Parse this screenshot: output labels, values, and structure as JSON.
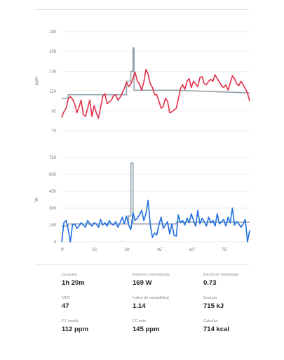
{
  "chart_data": [
    {
      "type": "line",
      "ylabel": "ppm",
      "yticks": [
        "70",
        "92",
        "114",
        "136",
        "158",
        "180"
      ],
      "ylim": [
        70,
        180
      ],
      "xlim": [
        0,
        87
      ],
      "grid": true,
      "colors": {
        "series": "#e0304a",
        "reference": "#93a3ad"
      },
      "series": [
        {
          "x": [
            0,
            1,
            2,
            3,
            4,
            5,
            6,
            7,
            8,
            9,
            10,
            11,
            12,
            13,
            14,
            15,
            16,
            17,
            18,
            19,
            20,
            21,
            22,
            23,
            24,
            25,
            26,
            27,
            28,
            29,
            30,
            31,
            32,
            33,
            34,
            35,
            36,
            37,
            38,
            39,
            40,
            41,
            42,
            43,
            44,
            45,
            46,
            47,
            48,
            49,
            50,
            51,
            52,
            53,
            54,
            55,
            56,
            57,
            58,
            59,
            60,
            61,
            62,
            63,
            64,
            65,
            66,
            67,
            68,
            69,
            70,
            71,
            72,
            73,
            74,
            75,
            76,
            77,
            78,
            79,
            80,
            81,
            82,
            83,
            84,
            85,
            86,
            87
          ],
          "values": [
            85,
            91,
            95,
            105,
            108,
            105,
            100,
            90,
            96,
            104,
            88,
            86,
            95,
            104,
            86,
            98,
            90,
            84,
            96,
            108,
            111,
            100,
            102,
            104,
            109,
            110,
            104,
            107,
            112,
            117,
            124,
            119,
            122,
            128,
            135,
            125,
            122,
            115,
            124,
            138,
            133,
            122,
            118,
            110,
            110,
            103,
            95,
            97,
            106,
            103,
            90,
            91,
            93,
            95,
            105,
            117,
            121,
            116,
            125,
            128,
            118,
            125,
            122,
            119,
            129,
            130,
            122,
            121,
            125,
            127,
            125,
            132,
            128,
            124,
            120,
            118,
            121,
            115,
            123,
            131,
            128,
            122,
            120,
            125,
            121,
            117,
            112,
            103
          ]
        },
        {
          "x": [
            0,
            3,
            3,
            28,
            28,
            30,
            30,
            32,
            32,
            33,
            33,
            33.5,
            33.5,
            53,
            53,
            87
          ],
          "values": [
            106,
            106,
            110,
            110,
            110,
            110,
            125,
            125,
            136,
            136,
            162,
            162,
            115,
            115,
            115,
            112
          ]
        }
      ]
    },
    {
      "type": "line",
      "ylabel": "W",
      "yticks": [
        "0",
        "150",
        "300",
        "450",
        "600",
        "750"
      ],
      "ylim": [
        0,
        750
      ],
      "xlim": [
        0,
        87
      ],
      "xticks": [
        "0'",
        "15'",
        "30'",
        "45'",
        "60'",
        "75'"
      ],
      "grid": true,
      "colors": {
        "series": "#1f6fe0",
        "reference": "#93a3ad"
      },
      "series": [
        {
          "x": [
            0,
            1,
            2,
            3,
            4,
            5,
            6,
            7,
            8,
            9,
            10,
            11,
            12,
            13,
            14,
            15,
            16,
            17,
            18,
            19,
            20,
            21,
            22,
            23,
            24,
            25,
            26,
            27,
            28,
            29,
            30,
            31,
            32,
            33,
            34,
            35,
            36,
            37,
            38,
            39,
            40,
            41,
            42,
            43,
            44,
            45,
            46,
            47,
            48,
            49,
            50,
            51,
            52,
            53,
            54,
            55,
            56,
            57,
            58,
            59,
            60,
            61,
            62,
            63,
            64,
            65,
            66,
            67,
            68,
            69,
            70,
            71,
            72,
            73,
            74,
            75,
            76,
            77,
            78,
            79,
            80,
            81,
            82,
            83,
            84,
            85,
            86,
            87
          ],
          "values": [
            0,
            170,
            190,
            110,
            0,
            150,
            160,
            120,
            140,
            170,
            150,
            130,
            190,
            160,
            140,
            170,
            160,
            130,
            200,
            150,
            170,
            140,
            190,
            160,
            150,
            180,
            130,
            170,
            220,
            160,
            230,
            150,
            110,
            260,
            190,
            210,
            240,
            280,
            190,
            250,
            370,
            150,
            40,
            80,
            60,
            150,
            220,
            120,
            150,
            180,
            70,
            160,
            60,
            50,
            240,
            170,
            190,
            150,
            210,
            170,
            250,
            190,
            140,
            280,
            160,
            210,
            180,
            140,
            220,
            170,
            190,
            140,
            250,
            160,
            180,
            200,
            140,
            220,
            170,
            300,
            150,
            180,
            160,
            130,
            160,
            200,
            0,
            100
          ]
        },
        {
          "x": [
            0,
            3,
            3,
            28,
            28,
            31,
            31,
            32,
            32,
            33,
            33,
            53,
            53,
            87
          ],
          "values": [
            140,
            140,
            160,
            160,
            160,
            160,
            230,
            230,
            700,
            700,
            160,
            160,
            175,
            175
          ]
        }
      ]
    }
  ],
  "stats": [
    {
      "label": "Duración",
      "value": "1h 20m"
    },
    {
      "label": "Potencia normalizada",
      "value": "169 W"
    },
    {
      "label": "Factor de intensidad",
      "value": "0.73"
    },
    {
      "label": "NTS",
      "value": "47"
    },
    {
      "label": "Índice de variabilidad",
      "value": "1.14"
    },
    {
      "label": "Energía",
      "value": "715 kJ"
    },
    {
      "label": "FC media",
      "value": "112 ppm"
    },
    {
      "label": "FC máx",
      "value": "145 ppm"
    },
    {
      "label": "Calorías",
      "value": "714 kcal"
    }
  ]
}
